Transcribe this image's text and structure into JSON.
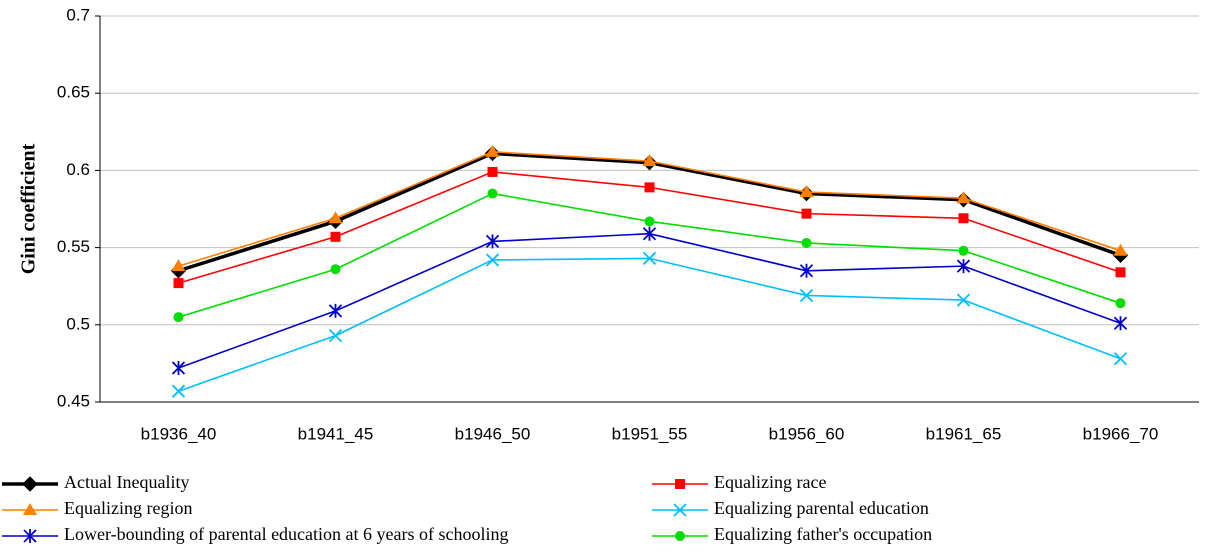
{
  "chart_data": {
    "type": "line",
    "y_label": "Gini coefficient",
    "categories": [
      "b1936_40",
      "b1941_45",
      "b1946_50",
      "b1951_55",
      "b1956_60",
      "b1961_65",
      "b1966_70"
    ],
    "ylim": [
      0.45,
      0.7
    ],
    "yticks": [
      0.45,
      0.5,
      0.55,
      0.6,
      0.65,
      0.7
    ],
    "grid": true,
    "series": [
      {
        "name": "Actual Inequality",
        "color": "#000000",
        "marker": "diamond",
        "values": [
          0.535,
          0.567,
          0.611,
          0.605,
          0.585,
          0.581,
          0.545
        ]
      },
      {
        "name": "Equalizing  race",
        "color": "#ff0000",
        "marker": "square",
        "values": [
          0.527,
          0.557,
          0.599,
          0.589,
          0.572,
          0.569,
          0.534
        ]
      },
      {
        "name": "Equalizing  region",
        "color": "#ff7f00",
        "marker": "triangle",
        "values": [
          0.538,
          0.569,
          0.612,
          0.606,
          0.586,
          0.582,
          0.548
        ]
      },
      {
        "name": "Equalizing  parental education",
        "color": "#00bfff",
        "marker": "x",
        "values": [
          0.457,
          0.493,
          0.542,
          0.543,
          0.519,
          0.516,
          0.478
        ]
      },
      {
        "name": "Lower-bounding of parental education at 6 years of schooling",
        "color": "#0000cc",
        "marker": "star",
        "values": [
          0.472,
          0.509,
          0.554,
          0.559,
          0.535,
          0.538,
          0.501
        ]
      },
      {
        "name": "Equalizing  father's occupation",
        "color": "#00dd00",
        "marker": "circle",
        "values": [
          0.505,
          0.536,
          0.585,
          0.567,
          0.553,
          0.548,
          0.514
        ]
      }
    ]
  }
}
